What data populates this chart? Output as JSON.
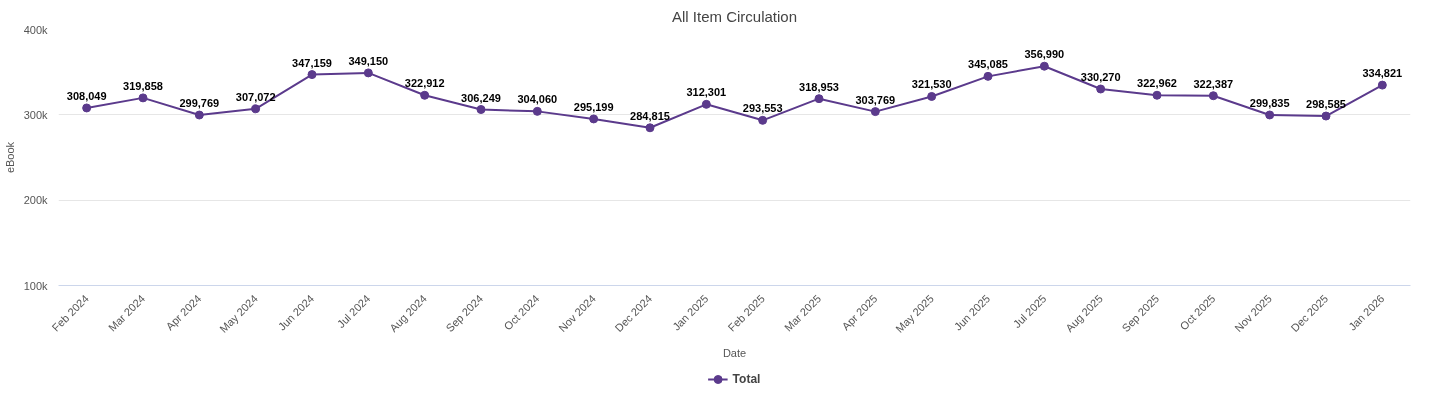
{
  "chart_data": {
    "type": "line",
    "title": "All Item Circulation",
    "xlabel": "Date",
    "ylabel": "eBook",
    "categories": [
      "Feb 2024",
      "Mar 2024",
      "Apr 2024",
      "May 2024",
      "Jun 2024",
      "Jul 2024",
      "Aug 2024",
      "Sep 2024",
      "Oct 2024",
      "Nov 2024",
      "Dec 2024",
      "Jan 2025",
      "Feb 2025",
      "Mar 2025",
      "Apr 2025",
      "May 2025",
      "Jun 2025",
      "Jul 2025",
      "Aug 2025",
      "Sep 2025",
      "Oct 2025",
      "Nov 2025",
      "Dec 2025",
      "Jan 2026"
    ],
    "series": [
      {
        "name": "Total",
        "color": "#5b3a8c",
        "values": [
          308049,
          319858,
          299769,
          307072,
          347159,
          349150,
          322912,
          306249,
          304060,
          295199,
          284815,
          312301,
          293553,
          318953,
          303769,
          321530,
          345085,
          356990,
          330270,
          322962,
          322387,
          299835,
          298585,
          334821
        ]
      }
    ],
    "value_labels": [
      "308,049",
      "319,858",
      "299,769",
      "307,072",
      "347,159",
      "349,150",
      "322,912",
      "306,249",
      "304,060",
      "295,199",
      "284,815",
      "312,301",
      "293,553",
      "318,953",
      "303,769",
      "321,530",
      "345,085",
      "356,990",
      "330,270",
      "322,962",
      "322,387",
      "299,835",
      "298,585",
      "334,821"
    ],
    "ylim": [
      100000,
      400000
    ],
    "yticks": [
      {
        "value": 100000,
        "label": "100k"
      },
      {
        "value": 200000,
        "label": "200k"
      },
      {
        "value": 300000,
        "label": "300k"
      },
      {
        "value": 400000,
        "label": "400k"
      }
    ],
    "grid": "y",
    "legend": "bottom",
    "marker": "circle",
    "line_style": "solid"
  }
}
